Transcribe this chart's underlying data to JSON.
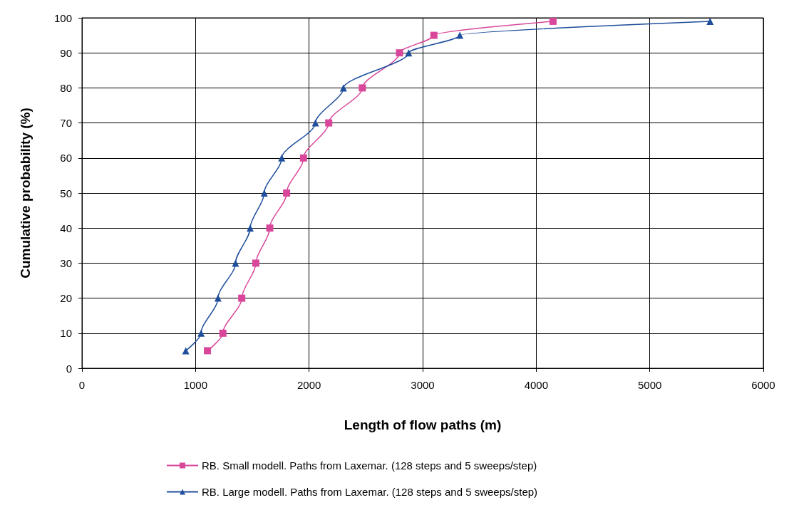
{
  "chart_data": {
    "type": "line",
    "xlabel": "Length of flow paths (m)",
    "ylabel": "Cumulative probability (%)",
    "xlim": [
      0,
      6000
    ],
    "xticks": [
      0,
      1000,
      2000,
      3000,
      4000,
      5000,
      6000
    ],
    "ylim": [
      0,
      100
    ],
    "yticks": [
      0,
      10,
      20,
      30,
      40,
      50,
      60,
      70,
      80,
      90,
      100
    ],
    "grid": true,
    "legend": "bottom",
    "line_style": "solid",
    "series": [
      {
        "name": "RB. Small modell. Paths from Laxemar. (128 steps and 5 sweeps/step)",
        "color": "#d9479b",
        "marker": "square",
        "x": [
          1105,
          1241,
          1407,
          1531,
          1654,
          1802,
          1951,
          2173,
          2469,
          2796,
          3099,
          4148
        ],
        "values": [
          5,
          10,
          20,
          30,
          40,
          50,
          60,
          70,
          80,
          90,
          95,
          99
        ]
      },
      {
        "name": "RB. Large modell. Paths from Laxemar. (128 steps and 5 sweeps/step)",
        "color": "#1f4e9c",
        "marker": "triangle",
        "x": [
          914,
          1049,
          1198,
          1352,
          1481,
          1605,
          1759,
          2056,
          2302,
          2877,
          3327,
          5531
        ],
        "values": [
          5,
          10,
          20,
          30,
          40,
          50,
          60,
          70,
          80,
          90,
          95,
          99
        ]
      }
    ]
  }
}
